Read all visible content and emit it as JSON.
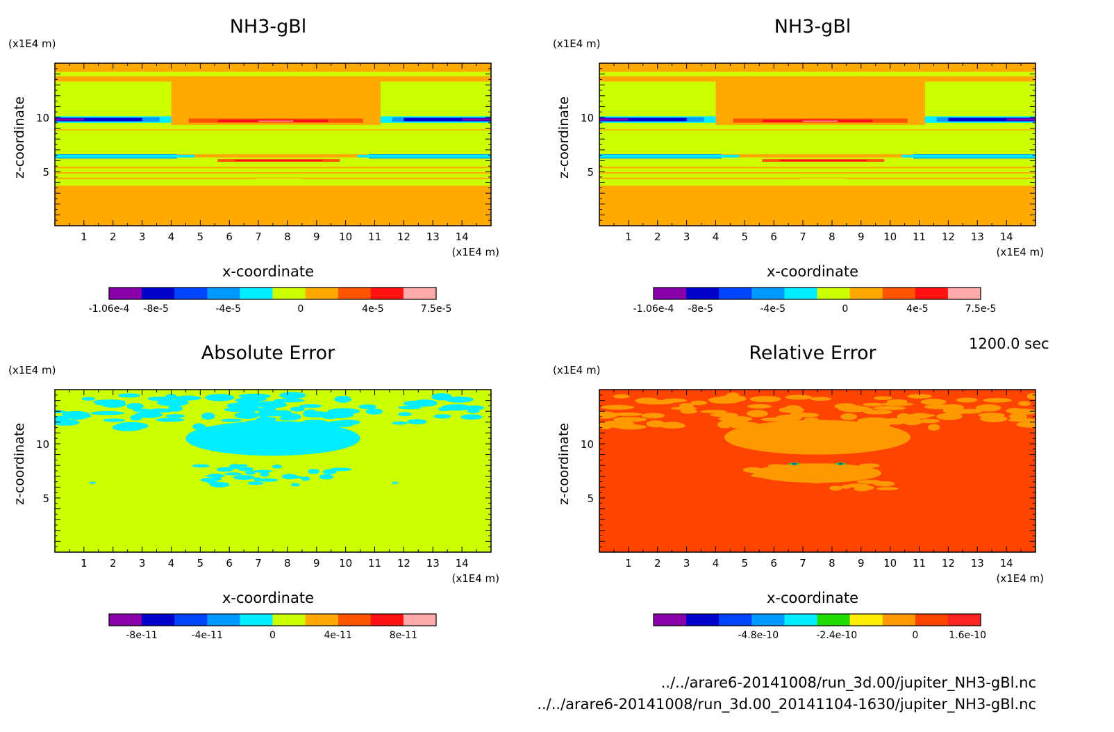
{
  "time_label": "1200.0 sec",
  "footer": {
    "file_a": "../../arare6-20141008/run_3d.00/jupiter_NH3-gBl.nc",
    "file_b": "../../arare6-20141008/run_3d.00_20141104-1630/jupiter_NH3-gBl.nc"
  },
  "chart_data": [
    {
      "type": "heatmap",
      "title": "NH3-gBl",
      "xlabel": "x-coordinate",
      "ylabel": "z-coordinate",
      "x_unit": "(x1E4 m)",
      "y_unit": "(x1E4 m)",
      "xlim": [
        0,
        15
      ],
      "ylim": [
        0,
        15
      ],
      "xticks": [
        1,
        2,
        3,
        4,
        5,
        6,
        7,
        8,
        9,
        10,
        11,
        12,
        13,
        14
      ],
      "yticks": [
        5,
        10
      ],
      "background_color": "#ffaa00",
      "pattern": "field",
      "colorbar": {
        "colors": [
          "#8800aa",
          "#0000cc",
          "#0044ff",
          "#0099ff",
          "#00eeff",
          "#ccff00",
          "#ffaa00",
          "#ff5500",
          "#ff1111",
          "#ffaaaa"
        ],
        "tick_labels": [
          "-1.06e-4",
          "-8e-5",
          "-4e-5",
          "0",
          "4e-5",
          "7.5e-5"
        ],
        "tick_values": [
          -0.000106,
          -8e-05,
          -4e-05,
          0,
          4e-05,
          7.5e-05
        ],
        "range": [
          -0.000106,
          7.5e-05
        ]
      }
    },
    {
      "type": "heatmap",
      "title": "NH3-gBl",
      "xlabel": "x-coordinate",
      "ylabel": "z-coordinate",
      "x_unit": "(x1E4 m)",
      "y_unit": "(x1E4 m)",
      "xlim": [
        0,
        15
      ],
      "ylim": [
        0,
        15
      ],
      "xticks": [
        1,
        2,
        3,
        4,
        5,
        6,
        7,
        8,
        9,
        10,
        11,
        12,
        13,
        14
      ],
      "yticks": [
        5,
        10
      ],
      "background_color": "#ffaa00",
      "pattern": "field",
      "colorbar": {
        "colors": [
          "#8800aa",
          "#0000cc",
          "#0044ff",
          "#0099ff",
          "#00eeff",
          "#ccff00",
          "#ffaa00",
          "#ff5500",
          "#ff1111",
          "#ffaaaa"
        ],
        "tick_labels": [
          "-1.06e-4",
          "-8e-5",
          "-4e-5",
          "0",
          "4e-5",
          "7.5e-5"
        ],
        "tick_values": [
          -0.000106,
          -8e-05,
          -4e-05,
          0,
          4e-05,
          7.5e-05
        ],
        "range": [
          -0.000106,
          7.5e-05
        ]
      }
    },
    {
      "type": "heatmap",
      "title": "Absolute Error",
      "xlabel": "x-coordinate",
      "ylabel": "z-coordinate",
      "x_unit": "(x1E4 m)",
      "y_unit": "(x1E4 m)",
      "xlim": [
        0,
        15
      ],
      "ylim": [
        0,
        15
      ],
      "xticks": [
        1,
        2,
        3,
        4,
        5,
        6,
        7,
        8,
        9,
        10,
        11,
        12,
        13,
        14
      ],
      "yticks": [
        5,
        10
      ],
      "background_color": "#ccff00",
      "pattern": "abs_error",
      "colorbar": {
        "colors": [
          "#8800aa",
          "#0000cc",
          "#0044ff",
          "#0099ff",
          "#00eeff",
          "#ccff00",
          "#ffaa00",
          "#ff5500",
          "#ff1111",
          "#ffaaaa"
        ],
        "tick_labels": [
          "-8e-11",
          "-4e-11",
          "0",
          "4e-11",
          "8e-11"
        ],
        "tick_values": [
          -8e-11,
          -4e-11,
          0,
          4e-11,
          8e-11
        ],
        "range": [
          -1e-10,
          1e-10
        ]
      }
    },
    {
      "type": "heatmap",
      "title": "Relative Error",
      "xlabel": "x-coordinate",
      "ylabel": "z-coordinate",
      "x_unit": "(x1E4 m)",
      "y_unit": "(x1E4 m)",
      "xlim": [
        0,
        15
      ],
      "ylim": [
        0,
        15
      ],
      "xticks": [
        1,
        2,
        3,
        4,
        5,
        6,
        7,
        8,
        9,
        10,
        11,
        12,
        13,
        14
      ],
      "yticks": [
        5,
        10
      ],
      "background_color": "#ff4400",
      "pattern": "rel_error",
      "colorbar": {
        "colors": [
          "#8800aa",
          "#0000cc",
          "#0044ff",
          "#0099ff",
          "#00eeff",
          "#22dd00",
          "#ffee00",
          "#ff9900",
          "#ff4400",
          "#ff2222"
        ],
        "tick_labels": [
          "-4.8e-10",
          "-2.4e-10",
          "0",
          "1.6e-10"
        ],
        "tick_values": [
          -4.8e-10,
          -2.4e-10,
          0,
          1.6e-10
        ],
        "range": [
          -8e-10,
          2e-10
        ]
      }
    }
  ]
}
